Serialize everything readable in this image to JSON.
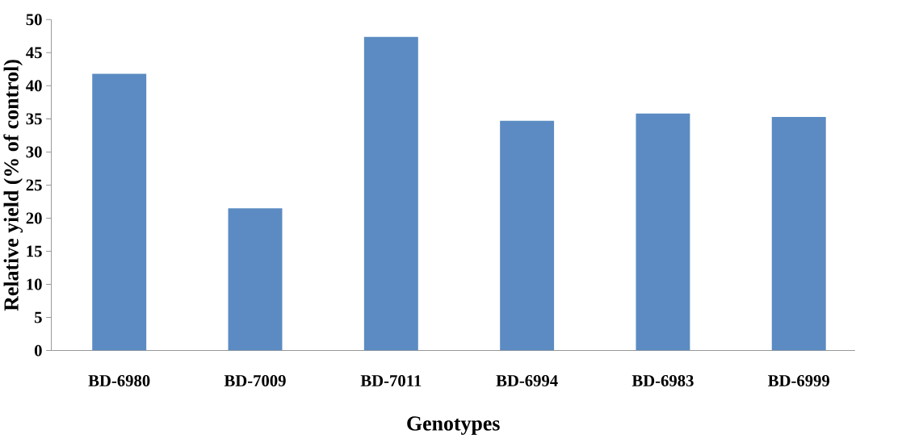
{
  "chart_data": {
    "type": "bar",
    "xlabel": "Genotypes",
    "ylabel": "Relative yield (% of control)",
    "categories": [
      "BD-6980",
      "BD-7009",
      "BD-7011",
      "BD-6994",
      "BD-6983",
      "BD-6999"
    ],
    "values": [
      41.8,
      21.5,
      47.4,
      34.7,
      35.8,
      35.3
    ],
    "color": "#5b8bc2",
    "ylim": [
      0,
      50
    ],
    "yticks": [
      0,
      5,
      10,
      15,
      20,
      25,
      30,
      35,
      40,
      45,
      50
    ],
    "tick_labels": [
      "x",
      "y"
    ]
  }
}
